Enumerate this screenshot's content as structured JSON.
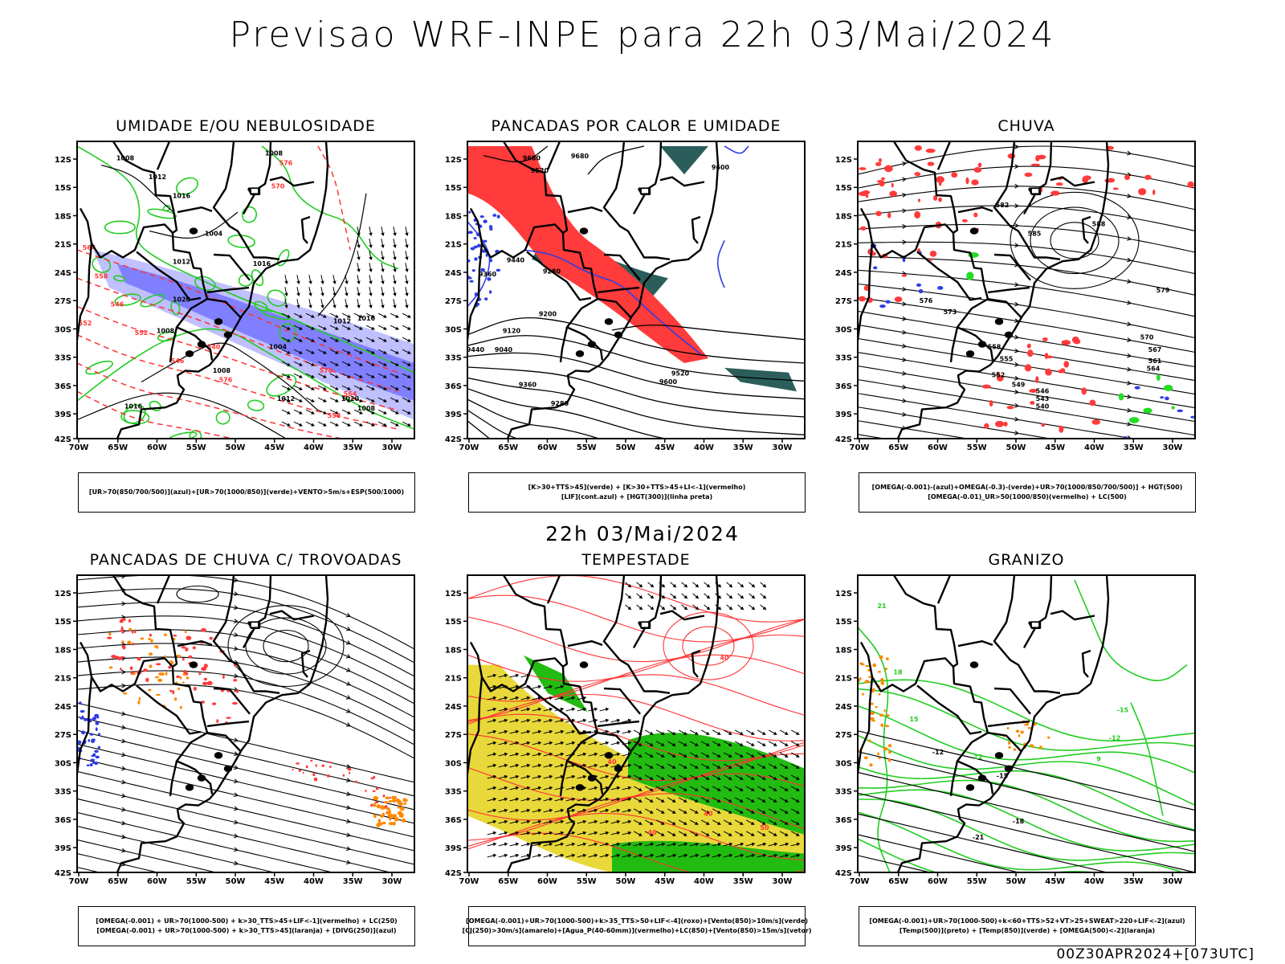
{
  "header": {
    "title": "Previsao WRF-INPE  para 22h 03/Mai/2024"
  },
  "mid_title": "22h 03/Mai/2024",
  "footer": "00Z30APR2024+[073UTC]",
  "axes": {
    "lat_labels": [
      "12S",
      "15S",
      "18S",
      "21S",
      "24S",
      "27S",
      "30S",
      "33S",
      "36S",
      "39S",
      "42S"
    ],
    "lon_labels": [
      "70W",
      "65W",
      "60W",
      "55W",
      "50W",
      "45W",
      "40W",
      "35W",
      "30W"
    ]
  },
  "panels": [
    {
      "id": "umidade",
      "title": "UMIDADE E/OU NEBULOSIDADE",
      "legend": [
        "[UR>70(850/700/500)](azul)+[UR>70(1000/850)](verde)+VENTO>5m/s+ESP(500/1000)"
      ],
      "contour_labels": [
        "1008",
        "1012",
        "1016",
        "1004",
        "1008",
        "1012",
        "1016",
        "1020",
        "576",
        "570",
        "564",
        "558",
        "552",
        "546",
        "540"
      ]
    },
    {
      "id": "pancadas-calor",
      "title": "PANCADAS POR CALOR E UMIDADE",
      "legend": [
        "[K>30+TTS>45](verde)  +  [K>30+TTS>45+LI<-1](vermelho)",
        "[LIF](cont.azul)  +  [HGT(300)](linha preta)"
      ],
      "contour_labels": [
        "9680",
        "9680",
        "9600",
        "9520",
        "9440",
        "9360",
        "9280",
        "9200",
        "9120",
        "9040",
        "9440",
        "9360",
        "9280",
        "9520",
        "9600"
      ]
    },
    {
      "id": "chuva",
      "title": "CHUVA",
      "legend": [
        "[OMEGA(-0.001)-(azul)+OMEGA(-0.3)-(verde)+UR>70(1000/850/700/500)]  +  HGT(500)",
        "[OMEGA(-0.01)_UR>50(1000/850)(vermelho)  +  LC(500)"
      ],
      "contour_labels": [
        "588",
        "585",
        "582",
        "579",
        "576",
        "573",
        "570",
        "567",
        "564",
        "561",
        "558",
        "555",
        "552",
        "549",
        "546",
        "543",
        "540"
      ]
    },
    {
      "id": "pancadas-trovoadas",
      "title": "PANCADAS DE CHUVA C/ TROVOADAS",
      "legend": [
        "[OMEGA(-0.001) + UR>70(1000-500) + k>30_TTS>45+LIF<-1](vermelho) + LC(250)",
        "[OMEGA(-0.001) + UR>70(1000-500) + k>30_TTS>45](laranja) + [DIVG(250)](azul)"
      ],
      "contour_labels": []
    },
    {
      "id": "tempestade",
      "title": "TEMPESTADE",
      "legend": [
        "[OMEGA(-0.001)+UR>70(1000-500)+k>35_TTS>50+LIF<-4](roxo)+[Vento(850)>10m/s](verde)",
        "[CJ(250)>30m/s](amarelo)+[Agua_P(40-60mm)](vermelho)+LC(850)+[Vento(850)>15m/s](vetor)"
      ],
      "contour_labels": [
        "40",
        "40",
        "40",
        "40",
        "50"
      ]
    },
    {
      "id": "granizo",
      "title": "GRANIZO",
      "legend": [
        "[OMEGA(-0.001)+UR>70(1000-500)+k<60+TTS>52+VT>25+SWEAT>220+LIF<-2](azul)",
        "[Temp(500)](preto)  +  [Temp(850)](verde)  +  [OMEGA(500)<-2](laranja)"
      ],
      "contour_labels": [
        "-12",
        "-15",
        "-18",
        "-21",
        "21",
        "18",
        "15",
        "12",
        "9",
        "-12",
        "-15"
      ]
    }
  ],
  "colors": {
    "blue_fill": "#8080ff",
    "light_blue_fill": "#c0c0ff",
    "green_line": "#22cc22",
    "red_line": "#ff3333",
    "red_fill": "#ff3b3b",
    "dark_teal": "#2b5e5a",
    "yellow_fill": "#e8d83a",
    "green_fill": "#22bb11",
    "orange": "#ff8800",
    "contour": "#000000"
  }
}
